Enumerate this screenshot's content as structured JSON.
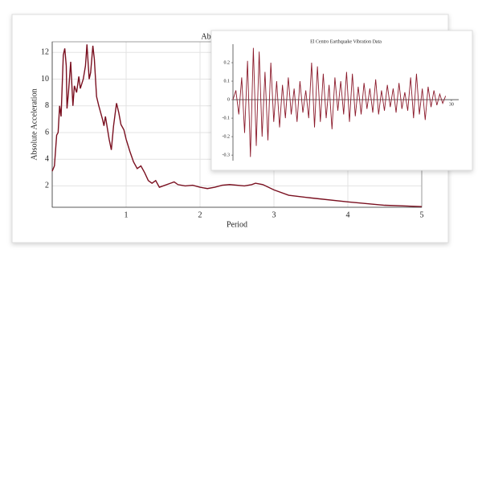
{
  "chart_data": [
    {
      "type": "line",
      "title": "Absolute Acceleration",
      "xlabel": "Period",
      "ylabel": "Absolute Acceleration",
      "x": [
        0.0,
        0.03,
        0.06,
        0.08,
        0.1,
        0.12,
        0.15,
        0.17,
        0.19,
        0.2,
        0.22,
        0.25,
        0.28,
        0.3,
        0.33,
        0.36,
        0.38,
        0.42,
        0.45,
        0.47,
        0.5,
        0.52,
        0.55,
        0.57,
        0.6,
        0.63,
        0.68,
        0.7,
        0.72,
        0.77,
        0.8,
        0.83,
        0.87,
        0.9,
        0.93,
        0.97,
        1.0,
        1.05,
        1.1,
        1.15,
        1.2,
        1.25,
        1.3,
        1.35,
        1.4,
        1.45,
        1.5,
        1.6,
        1.65,
        1.7,
        1.8,
        1.9,
        2.0,
        2.1,
        2.2,
        2.3,
        2.4,
        2.5,
        2.6,
        2.7,
        2.75,
        2.85,
        3.0,
        3.2,
        3.5,
        4.0,
        4.5,
        5.0
      ],
      "values": [
        3.1,
        3.5,
        5.8,
        6.0,
        8.0,
        7.2,
        11.8,
        12.3,
        11.0,
        7.8,
        9.0,
        11.3,
        8.0,
        9.5,
        9.0,
        10.2,
        9.3,
        10.0,
        11.0,
        12.6,
        10.0,
        10.5,
        12.5,
        11.5,
        8.7,
        8.0,
        7.0,
        6.5,
        7.2,
        5.5,
        4.7,
        6.5,
        8.2,
        7.5,
        6.6,
        6.2,
        5.5,
        4.6,
        3.8,
        3.3,
        3.5,
        3.0,
        2.4,
        2.2,
        2.4,
        1.9,
        2.0,
        2.2,
        2.3,
        2.1,
        2.0,
        2.05,
        1.9,
        1.8,
        1.9,
        2.05,
        2.1,
        2.05,
        2.0,
        2.1,
        2.2,
        2.1,
        1.7,
        1.3,
        1.1,
        0.8,
        0.55,
        0.45
      ],
      "color": "#7a1020",
      "xlim": [
        0,
        5
      ],
      "ylim": [
        0.4,
        12.8
      ],
      "xticks": [
        1,
        2,
        3,
        4,
        5
      ],
      "yticks": [
        2,
        4,
        6,
        8,
        10,
        12
      ],
      "grid": true
    },
    {
      "type": "line",
      "title": "El Centro Earthquake Vibration Data",
      "x": [
        0,
        0.4,
        0.8,
        1.2,
        1.6,
        2.0,
        2.4,
        2.8,
        3.2,
        3.6,
        4.0,
        4.4,
        4.8,
        5.2,
        5.6,
        6.0,
        6.4,
        6.8,
        7.2,
        7.6,
        8.0,
        8.4,
        8.8,
        9.2,
        9.6,
        10.0,
        10.4,
        10.8,
        11.2,
        11.6,
        12.0,
        12.4,
        12.8,
        13.2,
        13.6,
        14.0,
        14.4,
        14.8,
        15.2,
        15.6,
        16.0,
        16.4,
        16.8,
        17.2,
        17.6,
        18.0,
        18.4,
        18.8,
        19.2,
        19.6,
        20.0,
        20.4,
        20.8,
        21.2,
        21.6,
        22.0,
        22.4,
        22.8,
        23.2,
        23.6,
        24.0,
        24.4,
        24.8,
        25.2,
        25.6,
        26.0,
        26.4,
        26.8,
        27.2,
        27.6,
        28.0,
        28.4,
        28.8,
        29.2
      ],
      "values": [
        0.0,
        0.05,
        -0.08,
        0.12,
        -0.18,
        0.21,
        -0.31,
        0.28,
        -0.25,
        0.26,
        -0.2,
        0.15,
        -0.22,
        0.2,
        -0.12,
        0.1,
        -0.15,
        0.08,
        -0.1,
        0.12,
        -0.08,
        0.06,
        -0.12,
        0.1,
        -0.07,
        0.05,
        -0.1,
        0.2,
        -0.15,
        0.18,
        -0.12,
        0.14,
        -0.1,
        0.08,
        -0.16,
        0.12,
        -0.06,
        0.1,
        -0.08,
        0.15,
        -0.12,
        0.14,
        -0.09,
        0.07,
        -0.08,
        0.09,
        -0.05,
        0.06,
        -0.07,
        0.11,
        -0.08,
        0.05,
        -0.06,
        0.08,
        -0.04,
        0.06,
        -0.07,
        0.09,
        -0.05,
        0.04,
        -0.06,
        0.12,
        -0.1,
        0.14,
        -0.08,
        0.06,
        -0.11,
        0.07,
        -0.04,
        0.05,
        -0.03,
        0.03,
        -0.02,
        0.02
      ],
      "color": "#8b1a2b",
      "xlim": [
        0,
        31
      ],
      "ylim": [
        -0.33,
        0.3
      ],
      "xticks": [
        30
      ],
      "yticks": [
        0.2,
        0.1,
        0,
        -0.1,
        -0.2,
        -0.3
      ],
      "grid": false
    }
  ]
}
